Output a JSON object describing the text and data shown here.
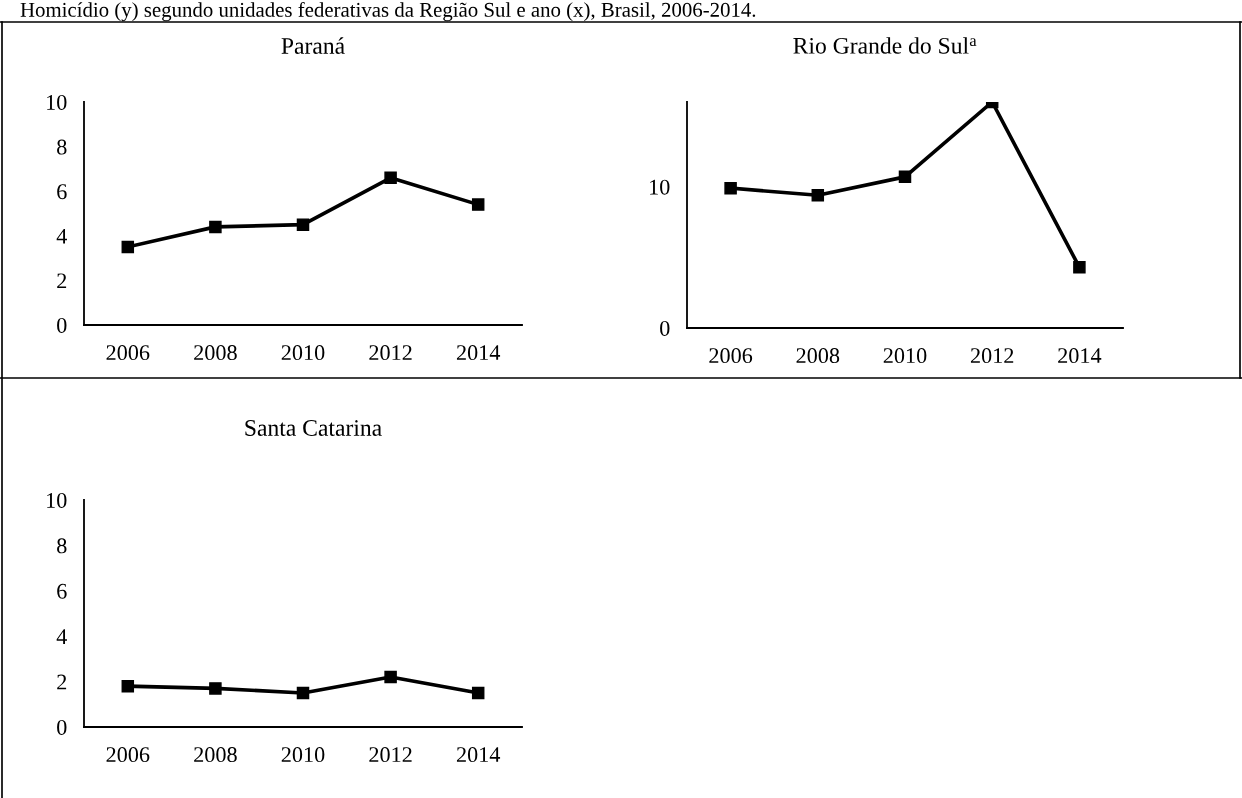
{
  "chart_data": [
    {
      "type": "line",
      "title": "Paraná",
      "annotations": [
        "Homicídio (y) segundo unidades federativas da Região Sul e ano (x), Brasil, 2006-2014."
      ],
      "categories": [
        "2006",
        "2008",
        "2010",
        "2012",
        "2014"
      ],
      "series": [
        {
          "color": "#000000",
          "values": [
            3.5,
            4.4,
            4.5,
            6.6,
            5.4
          ]
        }
      ],
      "ylim": [
        0,
        10
      ],
      "yticks": [
        0,
        2,
        4,
        6,
        8,
        10
      ],
      "marker": "square",
      "line_style": "solid"
    },
    {
      "type": "line",
      "title": "Rio Grande do Sul$^{a}$",
      "categories": [
        "2006",
        "2008",
        "2010",
        "2012",
        "2014"
      ],
      "series": [
        {
          "color": "#000000",
          "values": [
            9.9,
            9.4,
            10.7,
            16.0,
            4.3
          ]
        }
      ],
      "ylim": [
        0,
        16
      ],
      "yticks": [
        0,
        10
      ],
      "marker": "square",
      "line_style": "solid"
    },
    {
      "type": "line",
      "title": "Santa Catarina",
      "categories": [
        "2006",
        "2008",
        "2010",
        "2012",
        "2014"
      ],
      "series": [
        {
          "color": "#000000",
          "values": [
            1.8,
            1.7,
            1.5,
            2.2,
            1.5
          ]
        }
      ],
      "ylim": [
        0,
        10
      ],
      "yticks": [
        0,
        2,
        4,
        6,
        8,
        10
      ],
      "marker": "square",
      "line_style": "solid"
    }
  ]
}
